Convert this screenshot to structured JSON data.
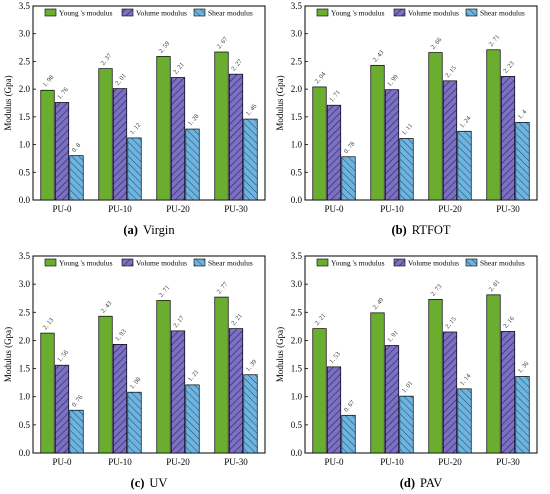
{
  "chart_data": [
    {
      "type": "bar",
      "caption_letter": "(a)",
      "caption_text": "Virgin",
      "ylabel": "Modulus (Gpa)",
      "xlabel": "",
      "ylim": [
        0,
        3.5
      ],
      "yticks": [
        "0.0",
        "0.5",
        "1.0",
        "1.5",
        "2.0",
        "2.5",
        "3.0",
        "3.5"
      ],
      "categories": [
        "PU-0",
        "PU-10",
        "PU-20",
        "PU-30"
      ],
      "legend_position": "top",
      "series": [
        {
          "name": "Young 's modulus",
          "values": [
            1.98,
            2.37,
            2.59,
            2.67
          ],
          "labels": [
            "1. 98",
            "2. 37",
            "2. 59",
            "2. 67"
          ]
        },
        {
          "name": "Volume modulus",
          "values": [
            1.76,
            2.01,
            2.21,
            2.27
          ],
          "labels": [
            "1. 76",
            "2. 01",
            "2. 21",
            "2. 27"
          ]
        },
        {
          "name": "Shear modulus",
          "values": [
            0.8,
            1.12,
            1.28,
            1.46
          ],
          "labels": [
            "0. 8",
            "1. 12",
            "1. 28",
            "1. 46"
          ]
        }
      ]
    },
    {
      "type": "bar",
      "caption_letter": "(b)",
      "caption_text": "RTFOT",
      "ylabel": "Modulus (Gpa)",
      "xlabel": "",
      "ylim": [
        0,
        3.5
      ],
      "yticks": [
        "0.0",
        "0.5",
        "1.0",
        "1.5",
        "2.0",
        "2.5",
        "3.0",
        "3.5"
      ],
      "categories": [
        "PU-0",
        "PU-10",
        "PU-20",
        "PU-30"
      ],
      "legend_position": "top",
      "series": [
        {
          "name": "Young 's modulus",
          "values": [
            2.04,
            2.43,
            2.66,
            2.71
          ],
          "labels": [
            "2. 04",
            "2. 43",
            "2. 66",
            "2. 71"
          ]
        },
        {
          "name": "Volume modulus",
          "values": [
            1.71,
            1.99,
            2.15,
            2.23
          ],
          "labels": [
            "1. 71",
            "1. 99",
            "2. 15",
            "2. 23"
          ]
        },
        {
          "name": "Shear modulus",
          "values": [
            0.78,
            1.11,
            1.24,
            1.4
          ],
          "labels": [
            "0. 78",
            "1. 11",
            "1. 24",
            "1. 4"
          ]
        }
      ]
    },
    {
      "type": "bar",
      "caption_letter": "(c)",
      "caption_text": "UV",
      "ylabel": "Modulus (Gpa)",
      "xlabel": "",
      "ylim": [
        0,
        3.5
      ],
      "yticks": [
        "0.0",
        "0.5",
        "1.0",
        "1.5",
        "2.0",
        "2.5",
        "3.0",
        "3.5"
      ],
      "categories": [
        "PU-0",
        "PU-10",
        "PU-20",
        "PU-30"
      ],
      "legend_position": "top",
      "series": [
        {
          "name": "Young 's modulus",
          "values": [
            2.13,
            2.43,
            2.71,
            2.77
          ],
          "labels": [
            "2. 13",
            "2. 43",
            "2. 71",
            "2. 77"
          ]
        },
        {
          "name": "Volume modulus",
          "values": [
            1.56,
            1.93,
            2.17,
            2.21
          ],
          "labels": [
            "1. 56",
            "1. 93",
            "2. 17",
            "2. 21"
          ]
        },
        {
          "name": "Shear modulus",
          "values": [
            0.76,
            1.08,
            1.21,
            1.39
          ],
          "labels": [
            "0. 76",
            "1. 08",
            "1. 21",
            "1. 39"
          ]
        }
      ]
    },
    {
      "type": "bar",
      "caption_letter": "(d)",
      "caption_text": "PAV",
      "ylabel": "Modulus (Gpa)",
      "xlabel": "",
      "ylim": [
        0,
        3.5
      ],
      "yticks": [
        "0.0",
        "0.5",
        "1.0",
        "1.5",
        "2.0",
        "2.5",
        "3.0",
        "3.5"
      ],
      "categories": [
        "PU-0",
        "PU-10",
        "PU-20",
        "PU-30"
      ],
      "legend_position": "top",
      "series": [
        {
          "name": "Young 's modulus",
          "values": [
            2.21,
            2.49,
            2.73,
            2.81
          ],
          "labels": [
            "2. 21",
            "2. 49",
            "2. 73",
            "2. 81"
          ]
        },
        {
          "name": "Volume modulus",
          "values": [
            1.53,
            1.91,
            2.15,
            2.16
          ],
          "labels": [
            "1. 53",
            "1. 91",
            "2. 15",
            "2. 16"
          ]
        },
        {
          "name": "Shear modulus",
          "values": [
            0.67,
            1.01,
            1.14,
            1.36
          ],
          "labels": [
            "0. 67",
            "1. 01",
            "1. 14",
            "1. 36"
          ]
        }
      ]
    }
  ],
  "colors": {
    "young": "#6aad2f",
    "volume": "#7b70c2",
    "shear": "#6fb4e0",
    "axis": "#000000"
  }
}
